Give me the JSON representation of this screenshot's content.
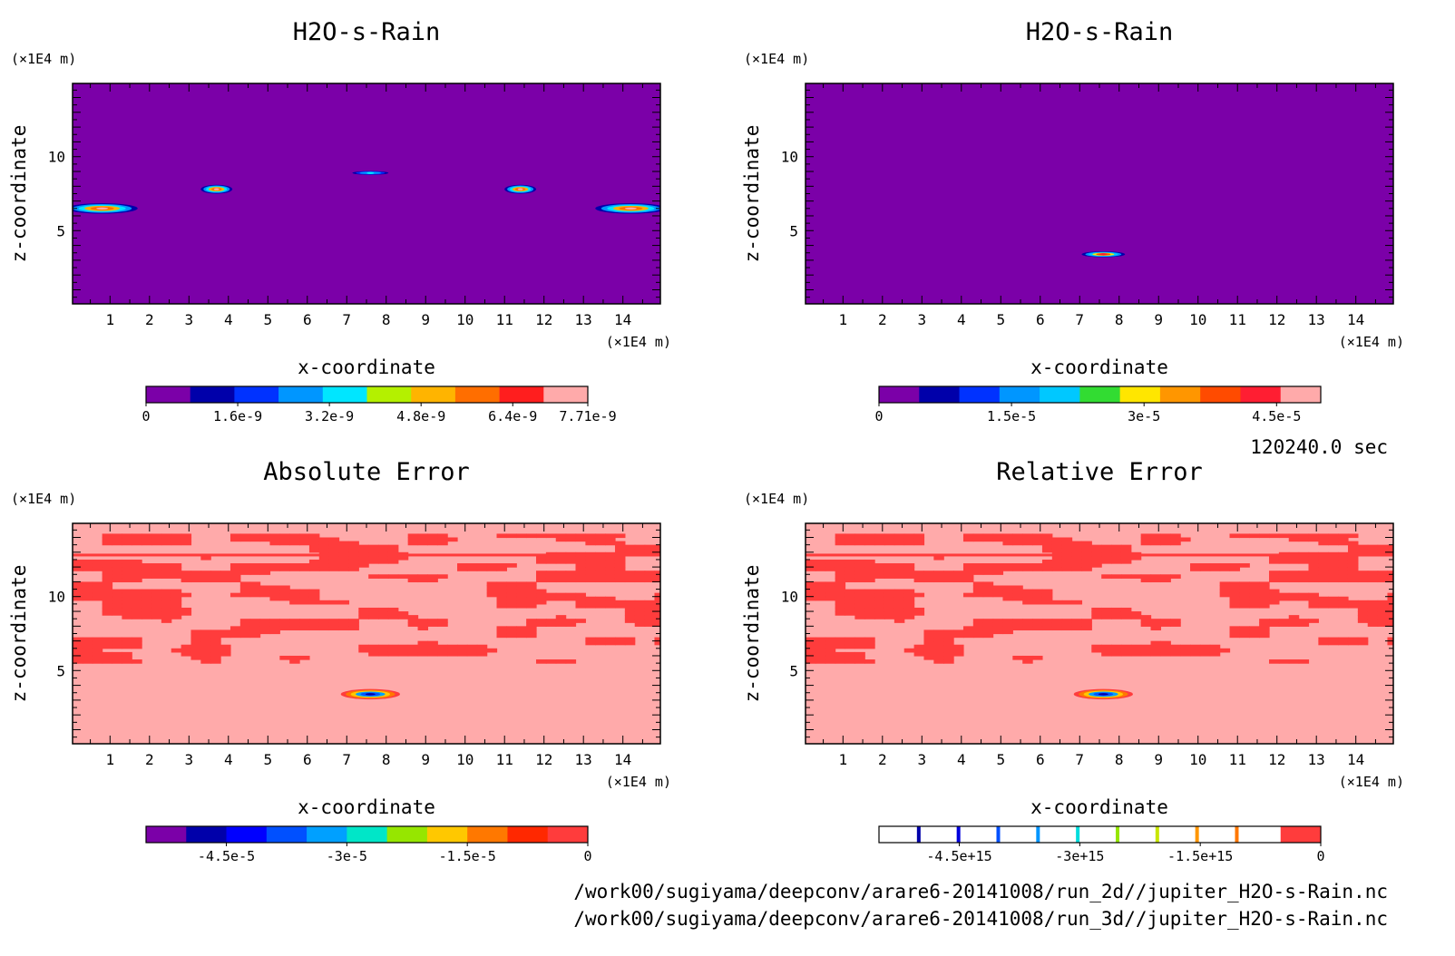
{
  "chart_data": [
    {
      "type": "heatmap",
      "title": "H2O-s-Rain",
      "xlabel": "x-coordinate",
      "ylabel": "z-coordinate",
      "x_unit": "(×1E4 m)",
      "y_unit": "(×1E4 m)",
      "xlim": [
        0.05,
        14.95
      ],
      "ylim": [
        0.05,
        14.95
      ],
      "x_ticks": [
        "1",
        "2",
        "3",
        "4",
        "5",
        "6",
        "7",
        "8",
        "9",
        "10",
        "11",
        "12",
        "13",
        "14"
      ],
      "y_ticks": [
        "5",
        "10"
      ],
      "background_level": 0,
      "features": [
        {
          "x": 0.8,
          "z": 6.5,
          "rx": 0.9,
          "rz": 0.35,
          "peak": 7e-09
        },
        {
          "x": 3.7,
          "z": 7.8,
          "rx": 0.4,
          "rz": 0.3,
          "peak": 7e-09
        },
        {
          "x": 7.6,
          "z": 8.9,
          "rx": 0.55,
          "rz": 0.15,
          "peak": 3.5e-09
        },
        {
          "x": 11.4,
          "z": 7.8,
          "rx": 0.4,
          "rz": 0.3,
          "peak": 7e-09
        },
        {
          "x": 14.2,
          "z": 6.5,
          "rx": 0.9,
          "rz": 0.35,
          "peak": 7e-09
        }
      ],
      "colorbar": {
        "min": 0,
        "max": 7.71e-09,
        "tick_labels": [
          "0",
          "1.6e-9",
          "3.2e-9",
          "4.8e-9",
          "6.4e-9",
          "7.71e-9"
        ],
        "colors": [
          "#7b00a8",
          "#0000aa",
          "#0032ff",
          "#0096ff",
          "#00e6ff",
          "#b4f000",
          "#ffb400",
          "#ff6e00",
          "#ff1e1e",
          "#ffaaaa"
        ]
      }
    },
    {
      "type": "heatmap",
      "title": "H2O-s-Rain",
      "xlabel": "x-coordinate",
      "ylabel": "z-coordinate",
      "x_unit": "(×1E4 m)",
      "y_unit": "(×1E4 m)",
      "xlim": [
        0.05,
        14.95
      ],
      "ylim": [
        0.05,
        14.95
      ],
      "x_ticks": [
        "1",
        "2",
        "3",
        "4",
        "5",
        "6",
        "7",
        "8",
        "9",
        "10",
        "11",
        "12",
        "13",
        "14"
      ],
      "y_ticks": [
        "5",
        "10"
      ],
      "background_level": 0,
      "features": [
        {
          "x": 7.6,
          "z": 3.4,
          "rx": 0.55,
          "rz": 0.2,
          "peak": 4.5e-05
        }
      ],
      "colorbar": {
        "min": 0,
        "max": 5e-05,
        "tick_labels": [
          "0",
          "1.5e-5",
          "3e-5",
          "4.5e-5"
        ],
        "colors": [
          "#7b00a8",
          "#0000aa",
          "#0032ff",
          "#0096ff",
          "#00c8ff",
          "#32dc32",
          "#ffe600",
          "#ff9600",
          "#ff4b00",
          "#ff1e32",
          "#ffaaaa"
        ]
      }
    },
    {
      "type": "heatmap",
      "title": "Absolute Error",
      "xlabel": "x-coordinate",
      "ylabel": "z-coordinate",
      "x_unit": "(×1E4 m)",
      "y_unit": "(×1E4 m)",
      "xlim": [
        0.05,
        14.95
      ],
      "ylim": [
        0.05,
        14.95
      ],
      "x_ticks": [
        "1",
        "2",
        "3",
        "4",
        "5",
        "6",
        "7",
        "8",
        "9",
        "10",
        "11",
        "12",
        "13",
        "14"
      ],
      "y_ticks": [
        "5",
        "10"
      ],
      "background_level": 0,
      "noise_band": [
        5.5,
        14.2
      ],
      "features": [
        {
          "x": 7.6,
          "z": 3.4,
          "rx": 0.75,
          "rz": 0.35,
          "peak": -5e-05
        }
      ],
      "colorbar": {
        "min": -5.5e-05,
        "max": 0,
        "tick_labels": [
          "-4.5e-5",
          "-3e-5",
          "-1.5e-5",
          "0"
        ],
        "colors": [
          "#7b00a8",
          "#0000aa",
          "#0000ff",
          "#0050ff",
          "#00a0ff",
          "#00e6c8",
          "#96e600",
          "#ffc800",
          "#ff7800",
          "#ff2800",
          "#ff3c3c"
        ]
      }
    },
    {
      "type": "heatmap",
      "title": "Relative Error",
      "xlabel": "x-coordinate",
      "ylabel": "z-coordinate",
      "x_unit": "(×1E4 m)",
      "y_unit": "(×1E4 m)",
      "xlim": [
        0.05,
        14.95
      ],
      "ylim": [
        0.05,
        14.95
      ],
      "x_ticks": [
        "1",
        "2",
        "3",
        "4",
        "5",
        "6",
        "7",
        "8",
        "9",
        "10",
        "11",
        "12",
        "13",
        "14"
      ],
      "y_ticks": [
        "5",
        "10"
      ],
      "background_level": 0,
      "noise_band": [
        5.5,
        14.2
      ],
      "features": [
        {
          "x": 7.6,
          "z": 3.4,
          "rx": 0.75,
          "rz": 0.35,
          "peak": -5e-05
        }
      ],
      "colorbar": {
        "min": -5500000000000000.0,
        "max": 0,
        "tick_labels": [
          "-4.5e+15",
          "-3e+15",
          "-1.5e+15",
          "0"
        ],
        "colors": [
          "#ffffff",
          "#ffffff",
          "#ffffff",
          "#ffffff",
          "#ffffff",
          "#ffffff",
          "#ffffff",
          "#ffffff",
          "#ffffff",
          "#ffffff",
          "#ff3c3c"
        ],
        "divider_colors": [
          "#0000aa",
          "#0000dd",
          "#0050ff",
          "#0096ff",
          "#00dcdc",
          "#96e600",
          "#c8e600",
          "#ff9600",
          "#ff7800"
        ]
      }
    }
  ],
  "time_label": "120240.0 sec",
  "file_paths": [
    "/work00/sugiyama/deepconv/arare6-20141008/run_2d//jupiter_H2O-s-Rain.nc",
    "/work00/sugiyama/deepconv/arare6-20141008/run_3d//jupiter_H2O-s-Rain.nc"
  ]
}
